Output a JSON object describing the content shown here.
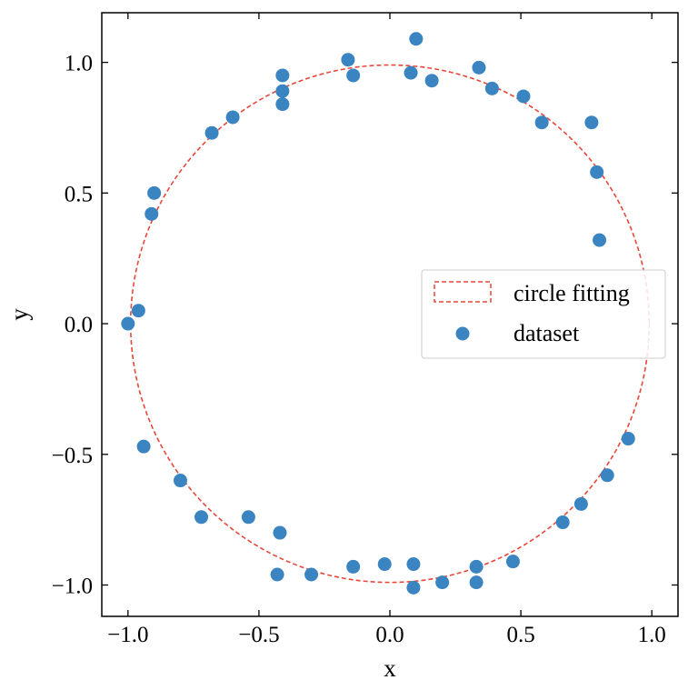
{
  "chart_data": {
    "type": "scatter",
    "xlabel": "x",
    "ylabel": "y",
    "xlim": [
      -1.1,
      1.1
    ],
    "ylim": [
      -1.12,
      1.19
    ],
    "xticks": [
      -1.0,
      -0.5,
      0.0,
      0.5,
      1.0
    ],
    "yticks": [
      -1.0,
      -0.5,
      0.0,
      0.5,
      1.0
    ],
    "xtick_labels": [
      "−1.0",
      "−0.5",
      "0.0",
      "0.5",
      "1.0"
    ],
    "ytick_labels": [
      "−1.0",
      "−0.5",
      "0.0",
      "0.5",
      "1.0"
    ],
    "grid": false,
    "legend_position": "center-right",
    "series": [
      {
        "name": "circle fitting",
        "kind": "dashed-circle",
        "center": [
          0.0,
          0.0
        ],
        "radius": 0.99,
        "color": "#e8473a"
      },
      {
        "name": "dataset",
        "kind": "scatter",
        "color": "#3a84c2",
        "points": [
          [
            -1.0,
            0.0
          ],
          [
            -0.96,
            0.05
          ],
          [
            -0.91,
            0.42
          ],
          [
            -0.9,
            0.5
          ],
          [
            -0.68,
            0.73
          ],
          [
            -0.6,
            0.79
          ],
          [
            -0.41,
            0.95
          ],
          [
            -0.41,
            0.89
          ],
          [
            -0.41,
            0.84
          ],
          [
            -0.16,
            1.01
          ],
          [
            -0.14,
            0.95
          ],
          [
            0.08,
            0.96
          ],
          [
            0.1,
            1.09
          ],
          [
            0.16,
            0.93
          ],
          [
            0.34,
            0.98
          ],
          [
            0.39,
            0.9
          ],
          [
            0.51,
            0.87
          ],
          [
            0.58,
            0.77
          ],
          [
            0.77,
            0.77
          ],
          [
            0.79,
            0.58
          ],
          [
            0.8,
            0.32
          ],
          [
            0.91,
            -0.44
          ],
          [
            0.83,
            -0.58
          ],
          [
            0.73,
            -0.69
          ],
          [
            0.66,
            -0.76
          ],
          [
            0.47,
            -0.91
          ],
          [
            0.33,
            -0.93
          ],
          [
            0.33,
            -0.99
          ],
          [
            0.2,
            -0.99
          ],
          [
            0.09,
            -0.92
          ],
          [
            0.09,
            -1.01
          ],
          [
            -0.02,
            -0.92
          ],
          [
            -0.14,
            -0.93
          ],
          [
            -0.3,
            -0.96
          ],
          [
            -0.43,
            -0.96
          ],
          [
            -0.42,
            -0.8
          ],
          [
            -0.54,
            -0.74
          ],
          [
            -0.72,
            -0.74
          ],
          [
            -0.8,
            -0.6
          ],
          [
            -0.94,
            -0.47
          ]
        ]
      }
    ]
  }
}
